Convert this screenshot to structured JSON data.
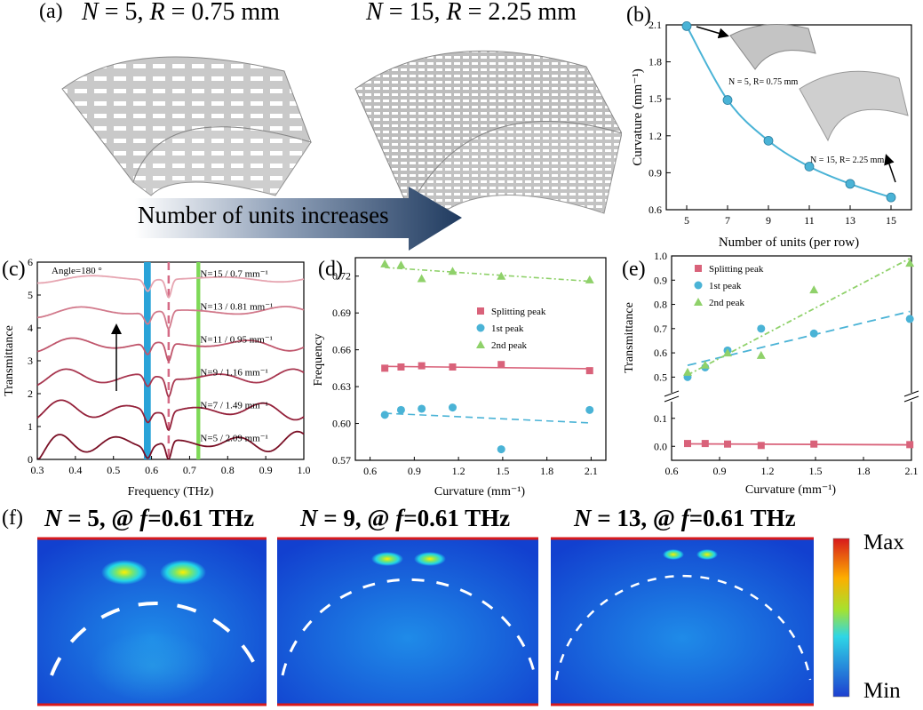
{
  "panel_a": {
    "label": "(a)",
    "left_title": {
      "n": "N",
      "n_val": " = 5, ",
      "r": "R",
      "r_val": " = 0.75 mm"
    },
    "right_title": {
      "n": "N",
      "n_val": " = 15, ",
      "r": "R",
      "r_val": " = 2.25 mm"
    },
    "arrow_text": "Number of units increases"
  },
  "panel_b": {
    "label": "(b)",
    "annot_top": "N = 5, R= 0.75 mm",
    "annot_bottom": "N = 15, R= 2.25 mm"
  },
  "panel_c": {
    "label": "(c)",
    "angle_text": "Angle=180 °"
  },
  "panel_d": {
    "label": "(d)"
  },
  "panel_e": {
    "label": "(e)"
  },
  "panel_f": {
    "label": "(f)",
    "maps": [
      {
        "n": "N",
        "rest": " = 5, @ ",
        "f": "f",
        "freq": "=0.61 THz"
      },
      {
        "n": "N",
        "rest": " = 9, @ ",
        "f": "f",
        "freq": "=0.61 THz"
      },
      {
        "n": "N",
        "rest": " = 13, @ ",
        "f": "f",
        "freq": "=0.61 THz"
      }
    ],
    "colorbar": {
      "max": "Max",
      "min": "Min"
    }
  },
  "colors": {
    "blue_line": "#4ab3d6",
    "pink": "#d9627a",
    "green": "#8fd16a",
    "dark_red": "#8b1a2e",
    "band_blue": "#2aa3d8",
    "band_green": "#7ed957"
  },
  "chart_data": [
    {
      "id": "b",
      "type": "line",
      "xlabel": "Number of units (per row)",
      "ylabel": "Curvature (mm⁻¹)",
      "x": [
        5,
        7,
        9,
        11,
        13,
        15
      ],
      "values": [
        2.09,
        1.49,
        1.16,
        0.95,
        0.81,
        0.7
      ],
      "xlim": [
        4,
        16
      ],
      "ylim": [
        0.6,
        2.1
      ],
      "xticks": [
        "5",
        "7",
        "9",
        "11",
        "13",
        "15"
      ],
      "yticks": [
        "0.6",
        "0.9",
        "1.2",
        "1.5",
        "1.8",
        "2.1"
      ]
    },
    {
      "id": "c",
      "type": "line",
      "xlabel": "Frequency (THz)",
      "ylabel": "Transmittance",
      "xlim": [
        0.3,
        1.0
      ],
      "ylim": [
        0,
        6
      ],
      "xticks": [
        "0.3",
        "0.4",
        "0.5",
        "0.6",
        "0.7",
        "0.8",
        "0.9",
        "1.0"
      ],
      "yticks": [
        "0",
        "1",
        "2",
        "3",
        "4",
        "5",
        "6"
      ],
      "series": [
        {
          "name": "N=5 / 2.09 mm⁻¹",
          "offset": 0
        },
        {
          "name": "N=7 / 1.49 mm⁻¹",
          "offset": 1
        },
        {
          "name": "N=9 / 1.16 mm⁻¹",
          "offset": 2
        },
        {
          "name": "N=11 / 0.95 mm⁻¹",
          "offset": 3
        },
        {
          "name": "N=13 / 0.81 mm⁻¹",
          "offset": 4
        },
        {
          "name": "N=15 / 0.7 mm⁻¹",
          "offset": 5
        }
      ]
    },
    {
      "id": "d",
      "type": "scatter",
      "xlabel": "Curvature (mm⁻¹)",
      "ylabel": "Frequency",
      "xlim": [
        0.6,
        2.1
      ],
      "ylim": [
        0.57,
        0.735
      ],
      "xticks": [
        "0.6",
        "0.9",
        "1.2",
        "1.5",
        "1.8",
        "2.1"
      ],
      "yticks": [
        "0.57",
        "0.60",
        "0.63",
        "0.66",
        "0.69",
        "0.72"
      ],
      "x": [
        0.7,
        0.81,
        0.95,
        1.16,
        1.49,
        2.09
      ],
      "series": [
        {
          "name": "Splitting peak",
          "values": [
            0.645,
            0.646,
            0.647,
            0.646,
            0.648,
            0.643
          ]
        },
        {
          "name": "1st peak",
          "values": [
            0.607,
            0.611,
            0.612,
            0.613,
            0.579,
            0.611
          ]
        },
        {
          "name": "2nd peak",
          "values": [
            0.73,
            0.729,
            0.718,
            0.724,
            0.72,
            0.717
          ]
        }
      ]
    },
    {
      "id": "e",
      "type": "scatter",
      "xlabel": "Curvature (mm⁻¹)",
      "ylabel": "Transmittance",
      "xlim": [
        0.6,
        2.1
      ],
      "xticks": [
        "0.6",
        "0.9",
        "1.2",
        "1.5",
        "1.8",
        "2.1"
      ],
      "yticks_upper": [
        "0.5",
        "0.6",
        "0.7",
        "0.8",
        "0.9",
        "1.0"
      ],
      "yticks_lower": [
        "0.0",
        "0.1"
      ],
      "x": [
        0.7,
        0.81,
        0.95,
        1.16,
        1.49,
        2.09
      ],
      "series": [
        {
          "name": "Splitting peak",
          "values": [
            0.01,
            0.01,
            0.008,
            0.003,
            0.008,
            0.006
          ]
        },
        {
          "name": "1st peak",
          "values": [
            0.5,
            0.54,
            0.61,
            0.7,
            0.68,
            0.74
          ]
        },
        {
          "name": "2nd peak",
          "values": [
            0.52,
            0.55,
            0.6,
            0.59,
            0.86,
            0.97
          ]
        }
      ]
    }
  ]
}
